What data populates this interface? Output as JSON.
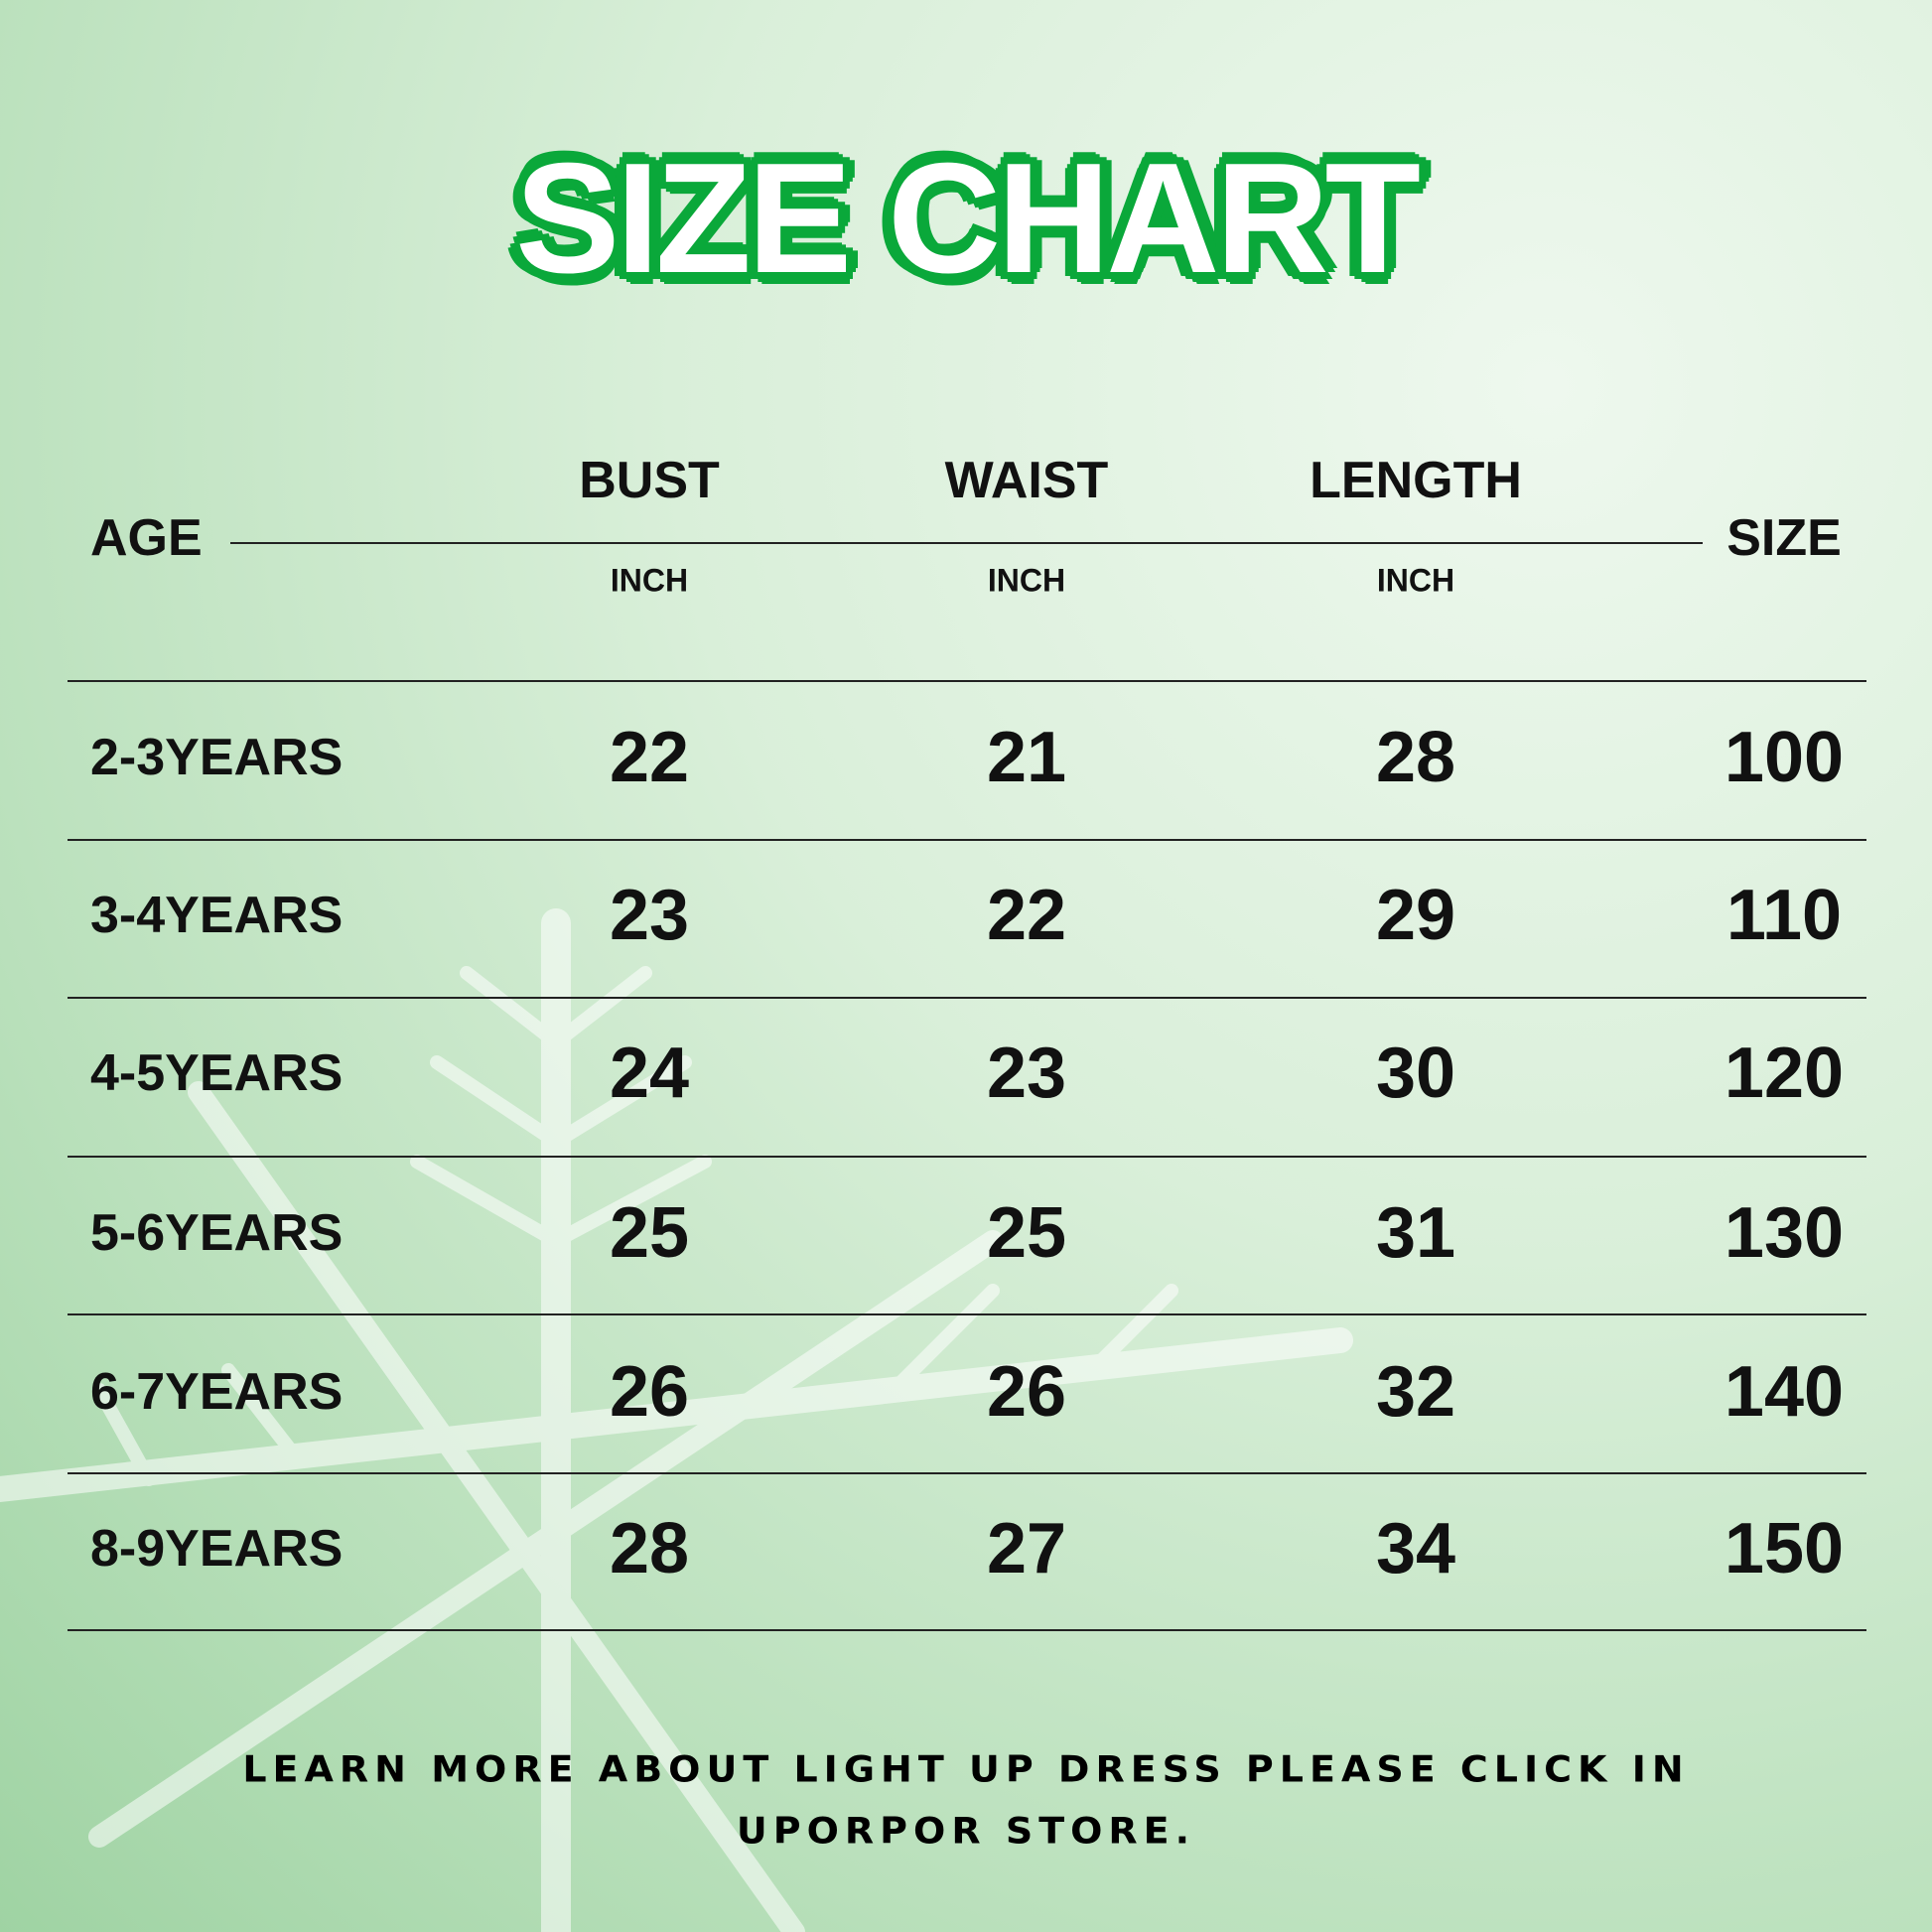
{
  "title": "SIZE CHART",
  "header": {
    "age": "AGE",
    "bust": "BUST",
    "waist": "WAIST",
    "length": "LENGTH",
    "size": "SIZE",
    "unit": "INCH"
  },
  "rows": [
    {
      "age": "2-3YEARS",
      "bust": "22",
      "waist": "21",
      "length": "28",
      "size": "100"
    },
    {
      "age": "3-4YEARS",
      "bust": "23",
      "waist": "22",
      "length": "29",
      "size": "110"
    },
    {
      "age": "4-5YEARS",
      "bust": "24",
      "waist": "23",
      "length": "30",
      "size": "120"
    },
    {
      "age": "5-6YEARS",
      "bust": "25",
      "waist": "25",
      "length": "31",
      "size": "130"
    },
    {
      "age": "6-7YEARS",
      "bust": "26",
      "waist": "26",
      "length": "32",
      "size": "140"
    },
    {
      "age": "8-9YEARS",
      "bust": "28",
      "waist": "27",
      "length": "34",
      "size": "150"
    }
  ],
  "footer": {
    "line1": "LEARN MORE ABOUT LIGHT UP DRESS PLEASE CLICK IN",
    "line2": "UPORPOR STORE."
  },
  "colors": {
    "title_outline": "#0aa83a",
    "background": "#c8e8c9"
  }
}
